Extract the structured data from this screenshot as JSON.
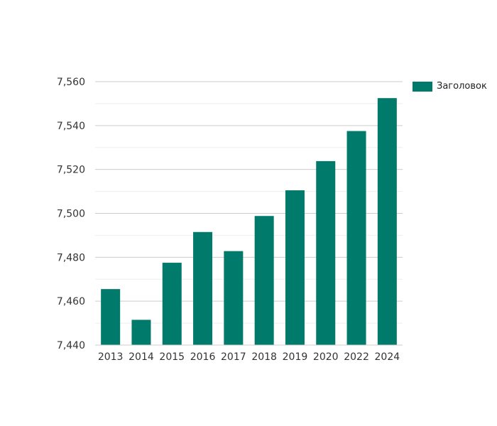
{
  "chart_data": {
    "type": "bar",
    "categories": [
      "2013",
      "2014",
      "2015",
      "2016",
      "2017",
      "2018",
      "2019",
      "2020",
      "2022",
      "2024"
    ],
    "series": [
      {
        "name": "Заголовок",
        "values": [
          7465.5,
          7451.5,
          7477.5,
          7491.5,
          7482.8,
          7498.8,
          7510.5,
          7523.8,
          7537.5,
          7552.5
        ]
      }
    ],
    "ylim": [
      7440,
      7560
    ],
    "yticks": [
      "7,440",
      "7,460",
      "7,480",
      "7,500",
      "7,520",
      "7,540",
      "7,560"
    ],
    "ytick_values": [
      7440,
      7460,
      7480,
      7500,
      7520,
      7540,
      7560
    ],
    "grid": true,
    "legend_position": "right",
    "colors": {
      "bar": "#007a6a",
      "grid_major": "#cccccc",
      "grid_minor": "#eeeeee",
      "axis": "#cccccc"
    }
  }
}
